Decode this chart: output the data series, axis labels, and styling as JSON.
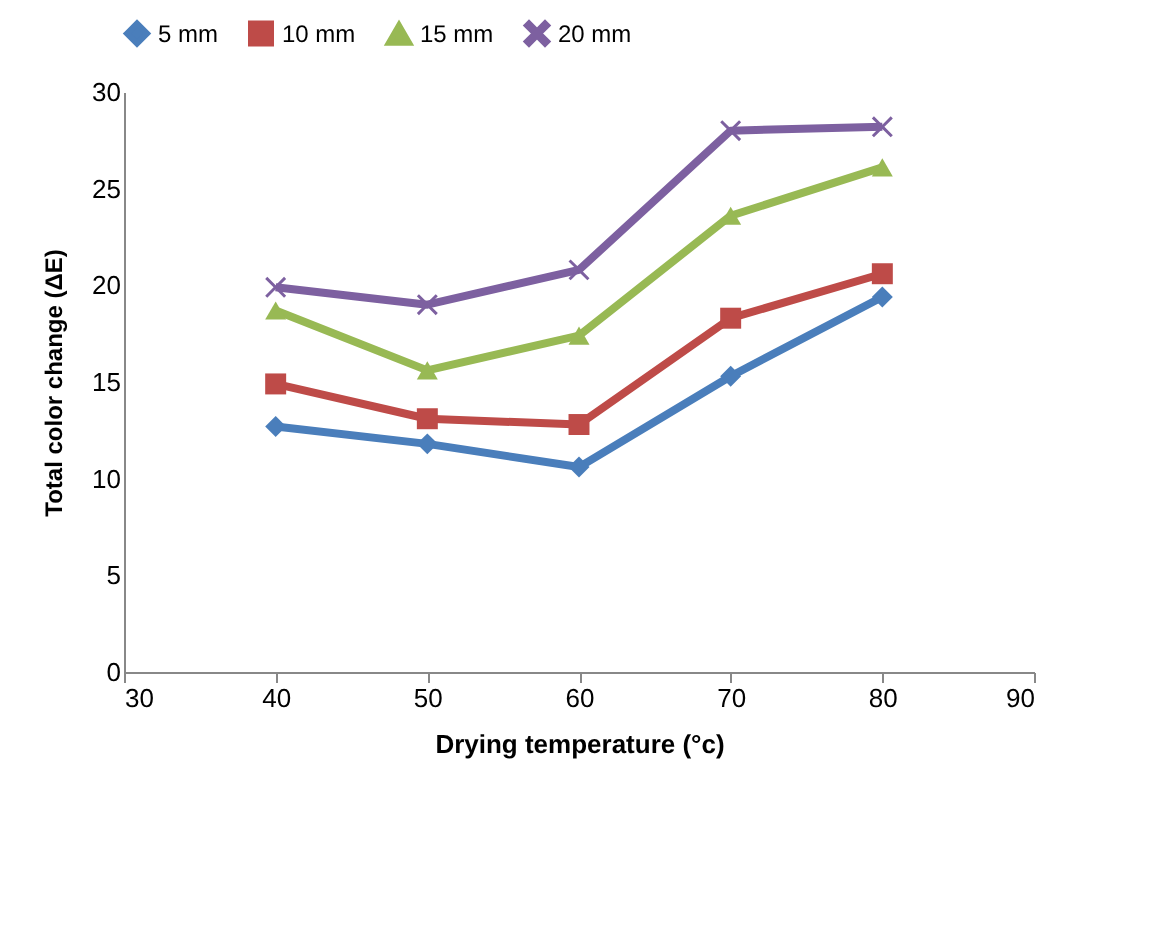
{
  "chart_data": {
    "type": "line",
    "xlabel": "Drying temperature (°c)",
    "ylabel": "Total color change (ΔE)",
    "x": [
      40,
      50,
      60,
      70,
      80
    ],
    "series": [
      {
        "name": "5 mm",
        "color": "#4a7ebb",
        "marker": "diamond",
        "values": [
          12.7,
          11.8,
          10.6,
          15.3,
          19.4
        ]
      },
      {
        "name": "10 mm",
        "color": "#be4b48",
        "marker": "square",
        "values": [
          14.9,
          13.1,
          12.8,
          18.3,
          20.6
        ]
      },
      {
        "name": "15 mm",
        "color": "#98b954",
        "marker": "triangle",
        "values": [
          18.7,
          15.6,
          17.4,
          23.6,
          26.1
        ]
      },
      {
        "name": "20 mm",
        "color": "#7d60a0",
        "marker": "cross",
        "values": [
          19.9,
          19.0,
          20.8,
          28.0,
          28.2
        ]
      }
    ],
    "xlim": [
      30,
      90
    ],
    "xticks": [
      30,
      40,
      50,
      60,
      70,
      80,
      90
    ],
    "ylim": [
      0,
      30
    ],
    "yticks": [
      0,
      5,
      10,
      15,
      20,
      25,
      30
    ],
    "grid": false,
    "legend": "top",
    "line_style": "solid"
  }
}
